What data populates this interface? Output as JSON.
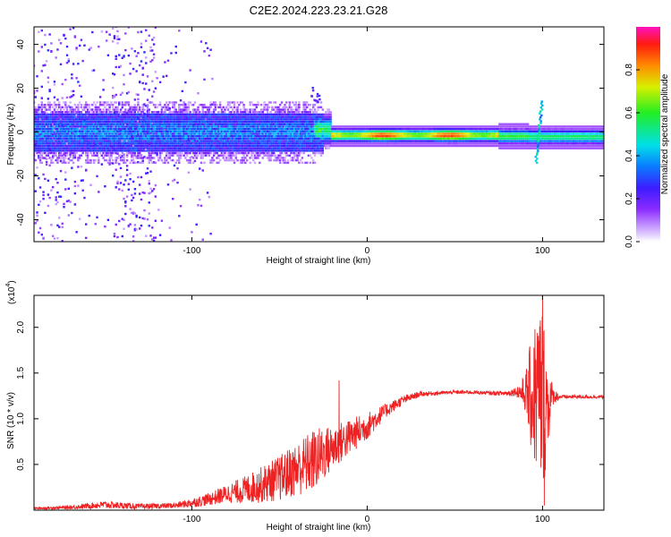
{
  "title": "C2E2.2024.223.23.21.G28",
  "chart_data": [
    {
      "type": "heatmap",
      "title": "C2E2.2024.223.23.21.G28",
      "xlabel": "Height of straight line (km)",
      "ylabel": "Frequency (Hz)",
      "xlim": [
        -190,
        135
      ],
      "ylim": [
        -50,
        48
      ],
      "xticks": [
        -100,
        0,
        100
      ],
      "yticks": [
        -40,
        -20,
        0,
        20,
        40
      ],
      "xtick_labels": [
        "-100",
        "0",
        "100"
      ],
      "ytick_labels": [
        "-40",
        "-20",
        "0",
        "20",
        "40"
      ],
      "colorbar": {
        "label": "Normalized spectral amplitude",
        "range": [
          0.0,
          1.0
        ],
        "ticks": [
          0.0,
          0.2,
          0.4,
          0.6,
          0.8
        ],
        "tick_labels": [
          "0.0",
          "0.2",
          "0.4",
          "0.6",
          "0.8"
        ],
        "colormap": "rainbow (white-violet-blue-cyan-green-yellow-red-magenta)"
      },
      "features": [
        {
          "x_range": [
            -190,
            -30
          ],
          "freq_center": 0,
          "freq_spread": 6,
          "amplitude": 0.35,
          "description": "noisy broadband band"
        },
        {
          "x_range": [
            -30,
            75
          ],
          "freq_center": -1.5,
          "freq_spread": 2,
          "amplitude": 0.75,
          "description": "strong narrow tone"
        },
        {
          "x_range": [
            75,
            135
          ],
          "freq_center": -2,
          "freq_spread": 2,
          "amplitude": 0.6,
          "description": "tone continues"
        },
        {
          "x": 98,
          "freq_range": [
            -14,
            14
          ],
          "description": "scintillation burst"
        }
      ]
    },
    {
      "type": "line",
      "xlabel": "Height of straight line (km)",
      "ylabel": "SNR (10 * v/v)",
      "y_multiplier_label": "(x10",
      "y_multiplier_exp": "4",
      "y_multiplier_close": ")",
      "xlim": [
        -190,
        135
      ],
      "ylim": [
        0,
        2.35
      ],
      "xticks": [
        -100,
        0,
        100
      ],
      "yticks": [
        0.5,
        1.0,
        1.5,
        2.0
      ],
      "xtick_labels": [
        "-100",
        "0",
        "100"
      ],
      "ytick_labels": [
        "0.5",
        "1.0",
        "1.5",
        "2.0"
      ],
      "series": [
        {
          "name": "SNR",
          "color": "#ee2222",
          "envelope_x": [
            -190,
            -170,
            -150,
            -130,
            -110,
            -100,
            -90,
            -80,
            -70,
            -60,
            -50,
            -40,
            -30,
            -20,
            -10,
            0,
            10,
            20,
            30,
            40,
            50,
            60,
            70,
            80,
            85,
            90,
            95,
            98,
            100,
            103,
            106,
            110,
            120,
            135
          ],
          "envelope_y": [
            0.02,
            0.03,
            0.06,
            0.04,
            0.05,
            0.08,
            0.12,
            0.18,
            0.22,
            0.28,
            0.35,
            0.45,
            0.55,
            0.68,
            0.8,
            0.92,
            1.08,
            1.2,
            1.27,
            1.28,
            1.29,
            1.29,
            1.28,
            1.28,
            1.3,
            1.28,
            1.25,
            1.3,
            1.2,
            1.15,
            1.25,
            1.24,
            1.24,
            1.24
          ],
          "noise_amplitude_y": [
            0.01,
            0.02,
            0.04,
            0.03,
            0.03,
            0.05,
            0.07,
            0.1,
            0.15,
            0.2,
            0.25,
            0.3,
            0.35,
            0.25,
            0.2,
            0.15,
            0.08,
            0.05,
            0.03,
            0.02,
            0.02,
            0.02,
            0.02,
            0.03,
            0.05,
            0.2,
            0.8,
            1.0,
            1.1,
            0.5,
            0.1,
            0.02,
            0.02,
            0.02
          ],
          "peaks": [
            {
              "x": -16,
              "y": 1.42
            },
            {
              "x": 100,
              "y": 2.35
            },
            {
              "x": 101,
              "y": 0.05
            }
          ]
        }
      ]
    }
  ]
}
